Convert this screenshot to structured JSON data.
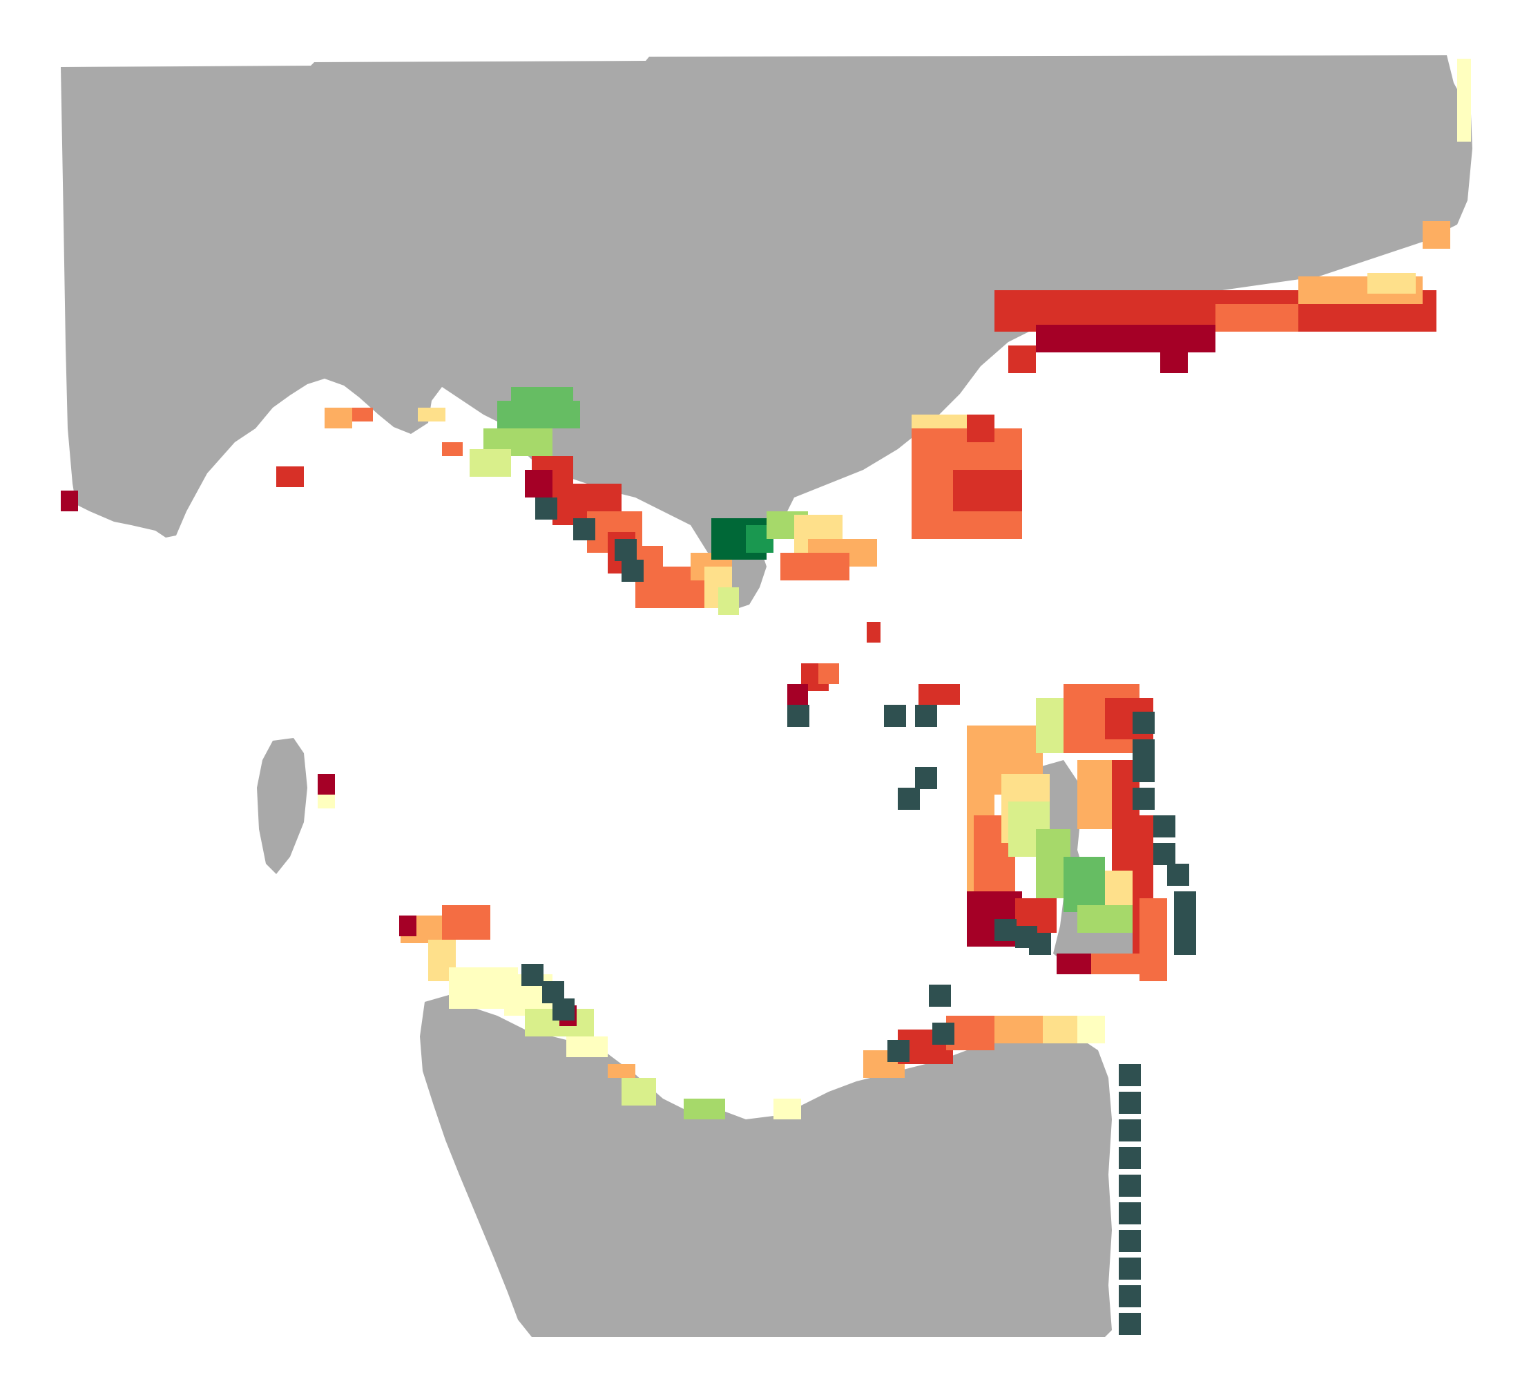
{
  "map": {
    "colors": {
      "land": "#a9a9a9",
      "water": "#ffffff",
      "no_data_cell": "#2f5050",
      "scale": [
        "#a50026",
        "#d73027",
        "#f46d43",
        "#fdae61",
        "#fee08b",
        "#ffffbf",
        "#d9ef8b",
        "#a6d96a",
        "#66bd63",
        "#1a9850",
        "#006837"
      ]
    },
    "legend_shown": false,
    "labels_shown": false
  }
}
